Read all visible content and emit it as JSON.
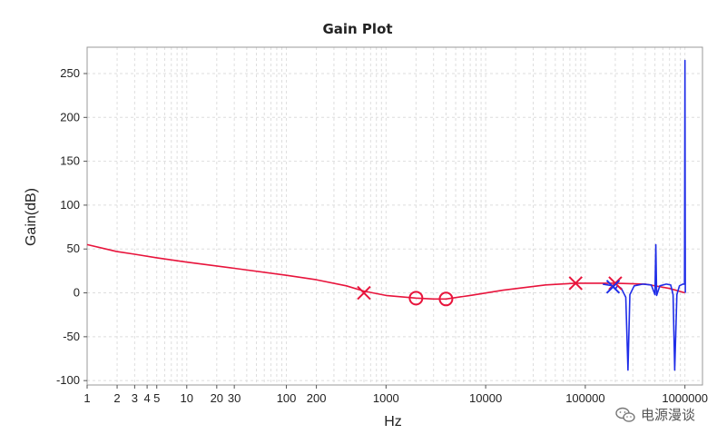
{
  "chart_data": {
    "type": "line",
    "title": "Gain Plot",
    "xlabel": "Hz",
    "ylabel": "Gain(dB)",
    "xscale": "log",
    "xlim": [
      1,
      1500000
    ],
    "ylim": [
      -105,
      280
    ],
    "grid": true,
    "x_tick_labels": [
      {
        "value": 1,
        "label": "1"
      },
      {
        "value": 2,
        "label": "2"
      },
      {
        "value": 3,
        "label": "3"
      },
      {
        "value": 4,
        "label": "4"
      },
      {
        "value": 5,
        "label": "5"
      },
      {
        "value": 10,
        "label": "10"
      },
      {
        "value": 20,
        "label": "20"
      },
      {
        "value": 30,
        "label": "30"
      },
      {
        "value": 100,
        "label": "100"
      },
      {
        "value": 200,
        "label": "200"
      },
      {
        "value": 1000,
        "label": "1000"
      },
      {
        "value": 10000,
        "label": "10000"
      },
      {
        "value": 100000,
        "label": "100000"
      },
      {
        "value": 1000000,
        "label": "1000000"
      }
    ],
    "y_ticks": [
      -100,
      -50,
      0,
      50,
      100,
      150,
      200,
      250
    ],
    "series": [
      {
        "color": "#e8143c",
        "points": [
          [
            1,
            55
          ],
          [
            2,
            47
          ],
          [
            3,
            44
          ],
          [
            5,
            40
          ],
          [
            10,
            35
          ],
          [
            30,
            28
          ],
          [
            100,
            20
          ],
          [
            200,
            15
          ],
          [
            400,
            8
          ],
          [
            600,
            2
          ],
          [
            1000,
            -3
          ],
          [
            2000,
            -6
          ],
          [
            3000,
            -7
          ],
          [
            4000,
            -7
          ],
          [
            7000,
            -3
          ],
          [
            15000,
            3
          ],
          [
            40000,
            9
          ],
          [
            80000,
            11
          ],
          [
            150000,
            11
          ],
          [
            200000,
            11
          ],
          [
            400000,
            10
          ],
          [
            700000,
            5
          ],
          [
            1000000,
            0
          ]
        ]
      },
      {
        "color": "#1f2de8",
        "points": [
          [
            150000,
            10
          ],
          [
            190000,
            8
          ],
          [
            200000,
            4
          ],
          [
            210000,
            8
          ],
          [
            230000,
            5
          ],
          [
            255000,
            -5
          ],
          [
            268000,
            -88
          ],
          [
            280000,
            -2
          ],
          [
            310000,
            8
          ],
          [
            380000,
            10
          ],
          [
            460000,
            9
          ],
          [
            500000,
            -2
          ],
          [
            510000,
            55
          ],
          [
            520000,
            -3
          ],
          [
            560000,
            8
          ],
          [
            650000,
            10
          ],
          [
            720000,
            9
          ],
          [
            760000,
            -2
          ],
          [
            790000,
            -88
          ],
          [
            830000,
            -2
          ],
          [
            880000,
            8
          ],
          [
            950000,
            10
          ],
          [
            990000,
            10
          ],
          [
            1000000,
            265
          ],
          [
            1010000,
            0
          ]
        ]
      }
    ],
    "markers": [
      {
        "type": "pole",
        "x": 600,
        "y": 0,
        "color": "#e8143c"
      },
      {
        "type": "zero",
        "x": 2000,
        "y": -6,
        "color": "#e8143c"
      },
      {
        "type": "zero",
        "x": 4000,
        "y": -7,
        "color": "#e8143c"
      },
      {
        "type": "pole",
        "x": 80000,
        "y": 11,
        "color": "#e8143c"
      },
      {
        "type": "pole",
        "x": 200000,
        "y": 11,
        "color": "#e8143c"
      },
      {
        "type": "pole",
        "x": 190000,
        "y": 7,
        "color": "#1f2de8"
      }
    ]
  },
  "watermark": {
    "icon": "wechat-icon",
    "text": "电源漫谈"
  }
}
